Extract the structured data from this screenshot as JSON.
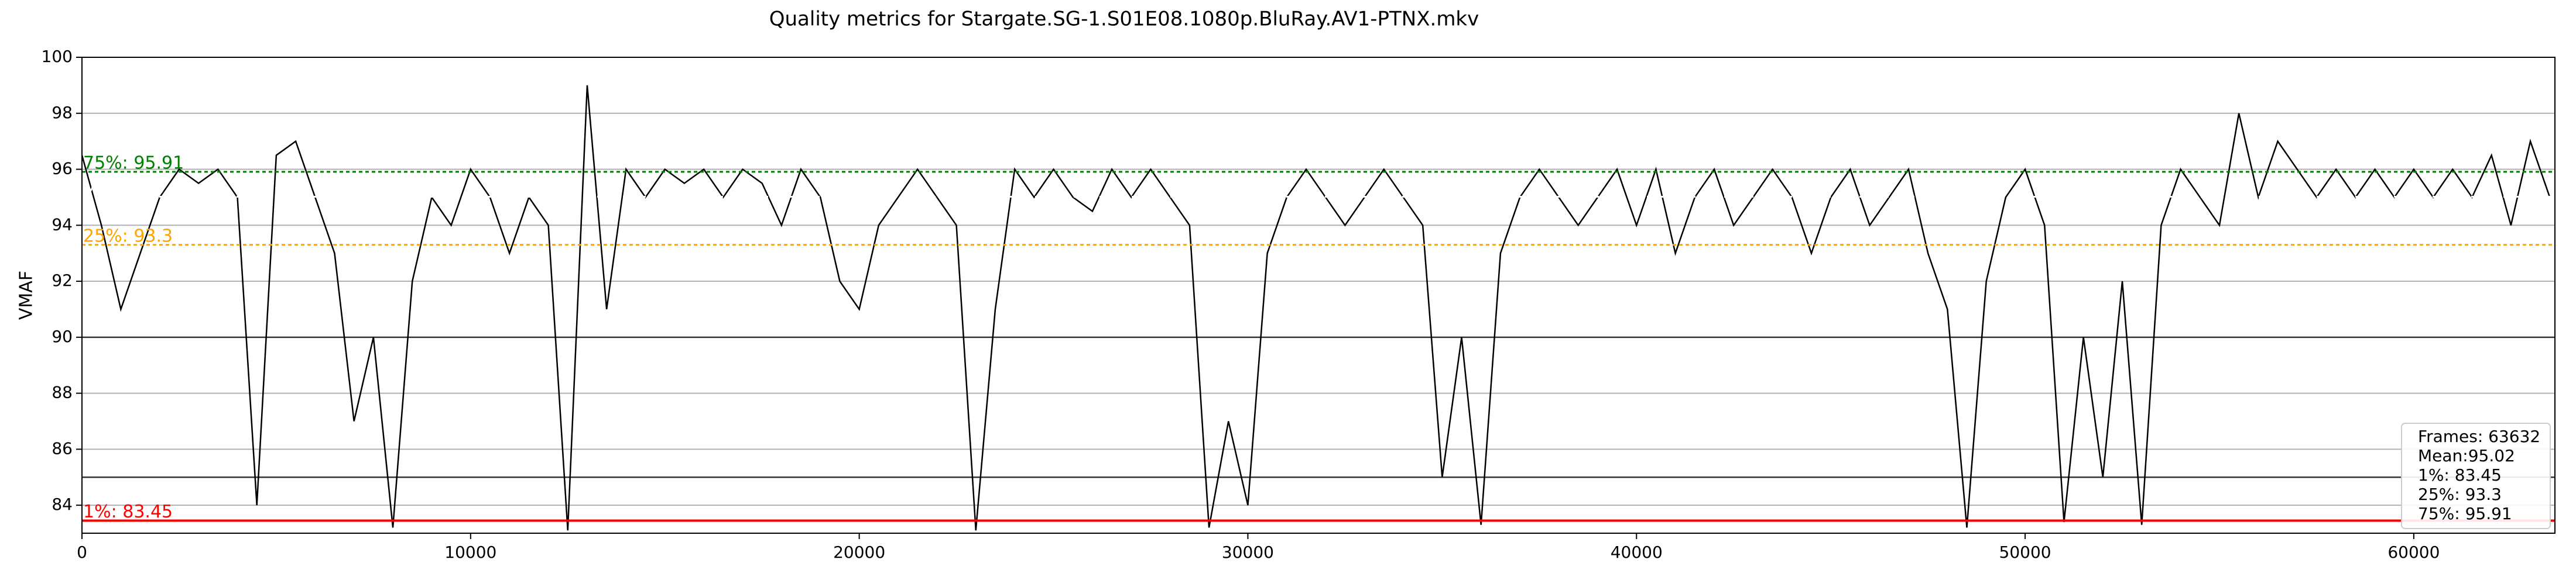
{
  "chart_data": {
    "type": "line",
    "title": "Quality metrics for Stargate.SG-1.S01E08.1080p.BluRay.AV1-PTNX.mkv",
    "y_label": "VMAF",
    "xlim": [
      0,
      63632
    ],
    "xticks": [
      0,
      10000,
      20000,
      30000,
      40000,
      50000,
      60000
    ],
    "ylim": [
      83,
      100
    ],
    "yticks": [
      84,
      86,
      88,
      90,
      92,
      94,
      96,
      98,
      100
    ],
    "grid": true,
    "hlines": [
      85,
      90
    ],
    "x": [
      0,
      500,
      1000,
      1500,
      2000,
      2500,
      3000,
      3500,
      4000,
      4500,
      5000,
      5500,
      6000,
      6500,
      7000,
      7500,
      8000,
      8500,
      9000,
      9500,
      10000,
      10500,
      11000,
      11500,
      12000,
      12500,
      13000,
      13500,
      14000,
      14500,
      15000,
      15500,
      16000,
      16500,
      17000,
      17500,
      18000,
      18500,
      19000,
      19500,
      20000,
      20500,
      21000,
      21500,
      22000,
      22500,
      23000,
      23500,
      24000,
      24500,
      25000,
      25500,
      26000,
      26500,
      27000,
      27500,
      28000,
      28500,
      29000,
      29500,
      30000,
      30500,
      31000,
      31500,
      32000,
      32500,
      33000,
      33500,
      34000,
      34500,
      35000,
      35500,
      36000,
      36500,
      37000,
      37500,
      38000,
      38500,
      39000,
      39500,
      40000,
      40500,
      41000,
      41500,
      42000,
      42500,
      43000,
      43500,
      44000,
      44500,
      45000,
      45500,
      46000,
      46500,
      47000,
      47500,
      48000,
      48500,
      49000,
      49500,
      50000,
      50500,
      51000,
      51500,
      52000,
      52500,
      53000,
      53500,
      54000,
      54500,
      55000,
      55500,
      56000,
      56500,
      57000,
      57500,
      58000,
      58500,
      59000,
      59500,
      60000,
      60500,
      61000,
      61500,
      62000,
      62500,
      63000,
      63500
    ],
    "series": [
      {
        "name": "VMAF",
        "color": "#000000",
        "values": [
          96.5,
          94,
          91,
          93,
          95,
          96,
          95.5,
          96,
          95,
          84,
          96.5,
          97,
          95,
          93,
          87,
          90,
          83.2,
          92,
          95,
          94,
          96,
          95,
          93,
          95,
          94,
          83.1,
          99,
          91,
          96,
          95,
          96,
          95.5,
          96,
          95,
          96,
          95.5,
          94,
          96,
          95,
          92,
          91,
          94,
          95,
          96,
          95,
          94,
          83.1,
          91,
          96,
          95,
          96,
          95,
          94.5,
          96,
          95,
          96,
          95,
          94,
          83.2,
          87,
          84,
          93,
          95,
          96,
          95,
          94,
          95,
          96,
          95,
          94,
          85,
          90,
          83.3,
          93,
          95,
          96,
          95,
          94,
          95,
          96,
          94,
          96,
          93,
          95,
          96,
          94,
          95,
          96,
          95,
          93,
          95,
          96,
          94,
          95,
          96,
          93,
          91,
          83.2,
          92,
          95,
          96,
          94,
          83.4,
          90,
          85,
          92,
          83.3,
          94,
          96,
          95,
          94,
          98,
          95,
          97,
          96,
          95,
          96,
          95,
          96,
          95,
          96,
          95,
          96,
          95,
          96.5,
          94,
          97,
          95
        ]
      }
    ],
    "thresholds": [
      {
        "label": "1%: 83.45",
        "value": 83.45,
        "color": "#ff0000"
      },
      {
        "label": "25%: 93.3",
        "value": 93.3,
        "color": "#ffa500"
      },
      {
        "label": "Mean: 95.02",
        "value": 95.02,
        "color": "#ffffff"
      },
      {
        "label": "75%: 95.91",
        "value": 95.91,
        "color": "#008000"
      }
    ],
    "stats_box": [
      "Frames: 63632",
      "Mean:95.02",
      "1%: 83.45",
      "25%: 93.3",
      "75%: 95.91"
    ]
  }
}
